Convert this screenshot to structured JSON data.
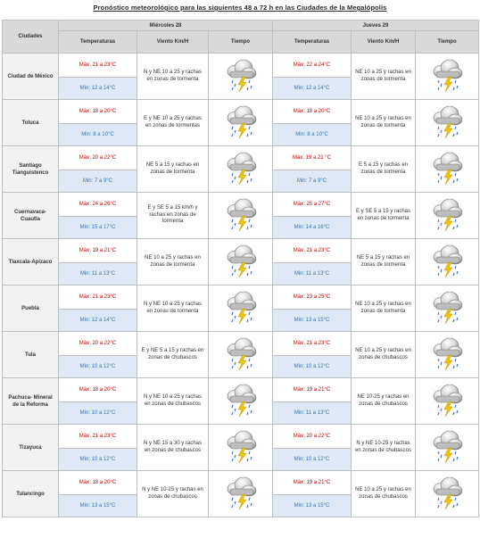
{
  "title": "Pronóstico meteorológico para las siguientes 48 a 72 h en las Ciudades de la Megalópolis",
  "header": {
    "cities_label": "Ciudades",
    "day1": "Miércoles 28",
    "day2": "Jueves 29",
    "col_temp": "Temperaturas",
    "col_wind": "Viento Km/H",
    "col_weather": "Tiempo"
  },
  "weather_icon": "storm-cloud-icon",
  "colors": {
    "max": "#c00000",
    "min": "#2e75b6",
    "header_bg": "#d9d9d9",
    "min_bg": "#dfe9f5"
  },
  "rows": [
    {
      "city": "Ciudad de México",
      "d1": {
        "max": "Máx: 21 a 23°C",
        "min": "Min: 12 a 14°C",
        "wind": "N y NE 10 a 25 y rachas en zonas de tormenta"
      },
      "d2": {
        "max": "Máx: 22 a 24°C",
        "min": "Min: 12 a 14°C",
        "wind": "NE 10 a 25 y rachas en zonas de tormenta"
      }
    },
    {
      "city": "Toluca",
      "d1": {
        "max": "Máx: 18 a 20°C",
        "min": "Min: 8 a 10°C",
        "wind": "E y NE 10 a 25 y rachas en zonas de tormentas"
      },
      "d2": {
        "max": "Máx: 18 a 20°C",
        "min": "Min: 8 a 10°C",
        "wind": "NE 10 a 25 y rachas en zonas de tormenta"
      }
    },
    {
      "city": "Santiago Tianguistenco",
      "d1": {
        "max": "Máx: 20 a 22°C",
        "min": "Min: 7 a 9°C",
        "wind": "NE 5 a 15 y rachas en zonas de tormenta"
      },
      "d2": {
        "max": "Máx: 19 a 21 °C",
        "min": "Min: 7 a 9°C",
        "wind": "E 5 a 15 y rachas en zonas de tormenta"
      }
    },
    {
      "city": "Cuernavaca-Cuautla",
      "d1": {
        "max": "Máx: 24 a 26°C",
        "min": "Min: 15 a 17°C",
        "wind": "E y SE 5 a 15 km/h y rachas en zonas de tormenta"
      },
      "d2": {
        "max": "Máx: 25 a 27°C",
        "min": "Min: 14 a 16°C",
        "wind": "E y SE 5 a 15 y rachas en zonas de tormenta"
      }
    },
    {
      "city": "Tlaxcala-Apizaco",
      "d1": {
        "max": "Máx: 19 a 21°C",
        "min": "Min: 11 a 13°C",
        "wind": "NE 10 a 25 y rachas en zonas de tormenta"
      },
      "d2": {
        "max": "Máx: 21 a 23°C",
        "min": "Min: 11 a 13°C",
        "wind": "NE 5 a 15 y rachas en zonas de tormenta"
      }
    },
    {
      "city": "Puebla",
      "d1": {
        "max": "Máx: 21 a 23°C",
        "min": "Min: 12 a 14°C",
        "wind": "N y NE 10 a 25 y rachas en zonas de tormenta"
      },
      "d2": {
        "max": "Máx: 23 a 25°C",
        "min": "Min: 13 a 15°C",
        "wind": "NE 10 a 25 y rachas en zonas de tormenta"
      }
    },
    {
      "city": "Tula",
      "d1": {
        "max": "Máx: 20 a 22°C",
        "min": "Min: 10 a 12°C",
        "wind": "E y NE 5 a 15 y rachas en zonas de chubascos"
      },
      "d2": {
        "max": "Máx: 21 a 23°C",
        "min": "Min: 10 a 12°C",
        "wind": "NE 10 a 25 y rachas en zonas de chubascos"
      }
    },
    {
      "city": "Pachuca- Mineral de la Reforma",
      "d1": {
        "max": "Máx: 18 a 20°C",
        "min": "Min: 10 a 12°C",
        "wind": "N y NE 10 a 25 y rachas en zonas de chubascos"
      },
      "d2": {
        "max": "Máx: 19 a 21°C",
        "min": "Min: 11 a 13°C",
        "wind": "NE 10-25 y rachas en zonas de chubascos"
      }
    },
    {
      "city": "Tizayuca",
      "d1": {
        "max": "Máx: 21 a 23°C",
        "min": "Min: 10 a 12°C",
        "wind": "N y NE 15 a 30 y rachas en zonas de chubascos"
      },
      "d2": {
        "max": "Máx: 20 a 22°C",
        "min": "Min: 10 a 12°C",
        "wind": "N y NE 10-25 y rachas en zonas de chubascos"
      }
    },
    {
      "city": "Tulancingo",
      "d1": {
        "max": "Máx: 18 a 20°C",
        "min": "Min: 13 a 15°C",
        "wind": "N y NE 10-25 y rachas en zonas de chubascos"
      },
      "d2": {
        "max": "Máx: 19 a 21°C",
        "min": "Min: 13 a 15°C",
        "wind": "NE 10 a 25 y rachas en zonas de chubascos"
      }
    }
  ]
}
